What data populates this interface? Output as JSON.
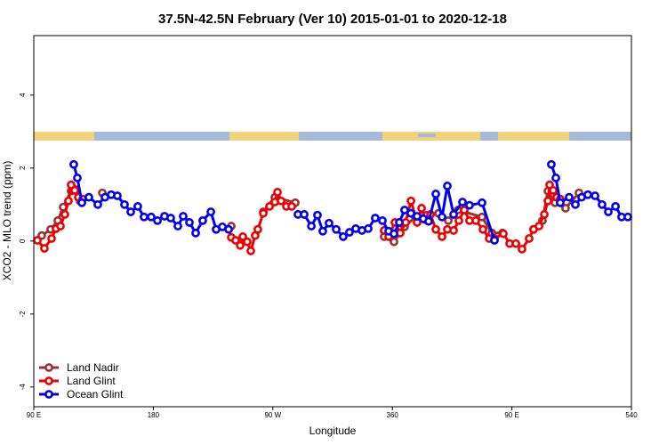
{
  "chart_data": {
    "type": "line",
    "title": "37.5N-42.5N February (Ver 10)   2015-01-01 to 2020-12-18",
    "x_label": "Longitude",
    "y_label": "XCO2 - MLO trend (ppm)",
    "xlim": [
      90,
      540
    ],
    "ylim": [
      -4.54,
      5.63
    ],
    "xticks": [
      {
        "value": 90,
        "label": "90 E"
      },
      180,
      {
        "value": 270,
        "label": "90 W"
      },
      360,
      {
        "value": 450,
        "label": "90 E"
      },
      540
    ],
    "yticks": [
      -4,
      -2,
      0,
      2,
      4
    ],
    "legend": "bottom-left",
    "series": [
      {
        "name": "Land Nadir",
        "color": "#993333",
        "x": [
          96.0,
          102.7,
          108.1,
          112.1,
          118.1,
          121.5,
          124.8,
          130,
          141.6,
          150,
          238.7,
          250,
          262.8,
          271.5,
          286.9,
          300,
          353.8,
          361.2,
          369.2,
          377.2,
          385.9,
          394.7,
          402.1,
          409.4,
          427.5,
          434.9,
          442.9,
          455,
          466.3,
          473.0,
          477.1,
          482.4,
          490.4,
          500.5
        ],
        "values": [
          0.15,
          0.32,
          0.56,
          0.93,
          1.37,
          1.41,
          1.1,
          null,
          1.32,
          null,
          0.41,
          null,
          0.8,
          1.2,
          1.05,
          null,
          0.12,
          -0.02,
          0.39,
          0.66,
          0.71,
          0.76,
          0.56,
          0.85,
          0.66,
          0.22,
          0.22,
          null,
          0.32,
          0.56,
          1.37,
          1.05,
          0.9,
          1.32
        ]
      },
      {
        "name": "Land Glint",
        "color": "#ee0000",
        "x": [
          92.7,
          98.0,
          103.4,
          106.7,
          110.1,
          113.4,
          116.1,
          118.1,
          120.8,
          123.5,
          126.8,
          180,
          238.7,
          242.0,
          245.4,
          247.4,
          250.7,
          253.4,
          256.7,
          258.7,
          262.8,
          267.5,
          271.5,
          273.5,
          276.2,
          280.2,
          284.2,
          320,
          353.8,
          357.2,
          361.9,
          365.9,
          370.0,
          374.0,
          378.6,
          382.0,
          384.6,
          388.7,
          392.7,
          397.4,
          401.4,
          406.1,
          410.1,
          414.1,
          418.1,
          422.8,
          428.2,
          432.9,
          436.9,
          443.6,
          448.3,
          453.0,
          457.6,
          463.0,
          466.3,
          470.4,
          474.4,
          477.1,
          478.4,
          481.1,
          483.7,
          486.4
        ],
        "values": [
          0.02,
          -0.2,
          0.07,
          0.34,
          0.41,
          0.73,
          1.1,
          1.54,
          1.39,
          1.2,
          1.15,
          null,
          0.1,
          0.02,
          -0.12,
          0.12,
          -0.02,
          -0.27,
          0.15,
          0.32,
          0.76,
          0.95,
          1.07,
          1.34,
          1.1,
          0.95,
          0.95,
          null,
          0.29,
          0.12,
          0.51,
          0.22,
          0.51,
          1.1,
          0.51,
          0.9,
          0.59,
          0.73,
          0.32,
          0.12,
          0.32,
          0.29,
          0.56,
          0.85,
          0.56,
          0.56,
          0.32,
          0.07,
          0.07,
          0.2,
          -0.07,
          -0.07,
          -0.22,
          0.07,
          0.32,
          0.41,
          0.73,
          1.1,
          1.54,
          1.39,
          1.2,
          1.15
        ]
      },
      {
        "name": "Ocean Glint",
        "color": "#0000ee",
        "x": [
          120.1,
          122.8,
          126.2,
          131.5,
          138.2,
          143.6,
          148.3,
          152.9,
          158.3,
          163.0,
          168.3,
          173.0,
          178.4,
          183.1,
          188.4,
          193.1,
          198.5,
          202.5,
          207.2,
          211.9,
          217.2,
          223.3,
          227.3,
          232.0,
          236.7,
          260,
          288.9,
          293.6,
          299.0,
          303.6,
          307.6,
          312.3,
          317.7,
          323.0,
          327.7,
          332.4,
          337.1,
          341.8,
          347.1,
          352.5,
          357.2,
          361.2,
          365.2,
          369.2,
          373.9,
          378.6,
          383.3,
          387.3,
          392.7,
          397.4,
          401.4,
          406.1,
          412.8,
          418.1,
          427.5,
          436.9,
          460,
          479.7,
          483.1,
          486.4,
          493.1,
          497.8,
          502.5,
          507.2,
          512.6,
          517.9,
          522.6,
          528.0,
          532.6,
          537.3
        ],
        "values": [
          2.1,
          1.73,
          1.05,
          1.2,
          1.0,
          1.2,
          1.27,
          1.24,
          1.0,
          0.8,
          0.95,
          0.66,
          0.66,
          0.56,
          0.68,
          0.63,
          0.41,
          0.68,
          0.51,
          0.22,
          0.56,
          0.8,
          0.32,
          0.39,
          0.32,
          null,
          0.73,
          0.73,
          0.41,
          0.71,
          0.27,
          0.49,
          0.32,
          0.12,
          0.24,
          0.34,
          0.29,
          0.34,
          0.63,
          0.56,
          0.27,
          0.2,
          0.51,
          0.85,
          0.76,
          0.68,
          0.61,
          0.54,
          1.29,
          0.66,
          1.51,
          0.73,
          1.07,
          0.98,
          1.05,
          0.02,
          null,
          2.1,
          1.73,
          1.05,
          1.2,
          1.0,
          1.2,
          1.27,
          1.24,
          1.0,
          0.8,
          0.95,
          0.66,
          0.66
        ]
      }
    ]
  }
}
